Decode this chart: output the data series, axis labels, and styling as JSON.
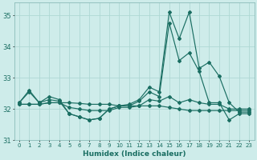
{
  "xlabel": "Humidex (Indice chaleur)",
  "bg_color": "#ceecea",
  "grid_color": "#aed8d4",
  "line_color": "#1a6e62",
  "spine_color": "#8bbcb8",
  "xlim": [
    -0.5,
    23.5
  ],
  "ylim": [
    31.0,
    35.4
  ],
  "yticks": [
    31,
    32,
    33,
    34,
    35
  ],
  "xtick_labels": [
    "0",
    "1",
    "2",
    "3",
    "4",
    "5",
    "6",
    "7",
    "8",
    "9",
    "10",
    "11",
    "12",
    "13",
    "14",
    "15",
    "16",
    "17",
    "18",
    "19",
    "20",
    "21",
    "22",
    "23"
  ],
  "lines": [
    [
      32.2,
      32.6,
      32.2,
      32.4,
      32.3,
      31.85,
      31.75,
      31.65,
      31.7,
      32.0,
      32.1,
      32.15,
      32.3,
      32.7,
      32.55,
      35.1,
      34.25,
      35.1,
      33.3,
      33.5,
      33.05,
      32.2,
      31.9,
      31.9
    ],
    [
      32.2,
      32.55,
      32.2,
      32.3,
      32.25,
      31.85,
      31.75,
      31.65,
      31.7,
      32.0,
      32.1,
      32.1,
      32.25,
      32.55,
      32.4,
      34.75,
      33.55,
      33.8,
      33.2,
      32.2,
      32.2,
      31.65,
      31.85,
      31.85
    ],
    [
      32.15,
      32.15,
      32.15,
      32.2,
      32.2,
      32.2,
      32.18,
      32.15,
      32.15,
      32.15,
      32.1,
      32.1,
      32.1,
      32.1,
      32.1,
      32.05,
      32.0,
      31.95,
      31.95,
      31.95,
      31.95,
      31.95,
      31.95,
      31.95
    ],
    [
      32.15,
      32.15,
      32.15,
      32.2,
      32.2,
      32.05,
      32.0,
      31.95,
      31.95,
      31.95,
      32.05,
      32.05,
      32.1,
      32.3,
      32.25,
      32.4,
      32.2,
      32.3,
      32.2,
      32.15,
      32.15,
      32.0,
      32.0,
      32.0
    ]
  ]
}
